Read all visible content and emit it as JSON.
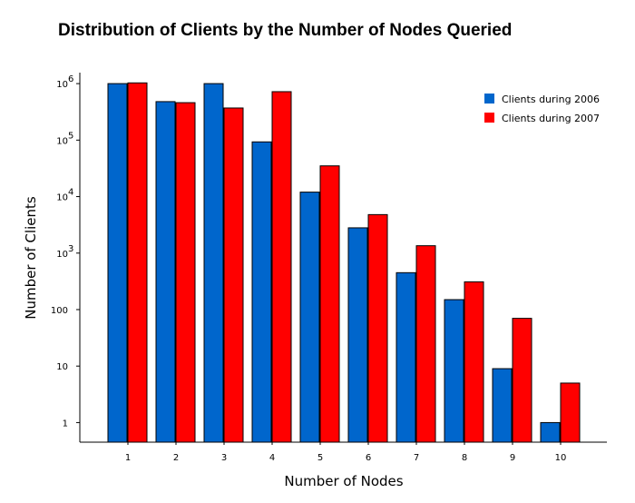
{
  "chart_data": {
    "type": "bar",
    "title": "Distribution of Clients by the Number of Nodes Queried",
    "xlabel": "Number of Nodes",
    "ylabel": "Number of Clients",
    "y_scale": "log",
    "ylim": [
      0.45,
      1300000
    ],
    "categories": [
      "1",
      "2",
      "3",
      "4",
      "5",
      "6",
      "7",
      "8",
      "9",
      "10"
    ],
    "y_ticks": [
      {
        "value": 1,
        "label": "1"
      },
      {
        "value": 10,
        "label": "10"
      },
      {
        "value": 100,
        "label": "100"
      },
      {
        "value": 1000,
        "label": "10",
        "exponent": "3"
      },
      {
        "value": 10000,
        "label": "10",
        "exponent": "4"
      },
      {
        "value": 100000,
        "label": "10",
        "exponent": "5"
      },
      {
        "value": 1000000,
        "label": "10",
        "exponent": "6"
      }
    ],
    "series": [
      {
        "name": "Clients during 2006",
        "color": "#0066cc",
        "values": [
          1000000,
          480000,
          1000000,
          93000,
          12000,
          2800,
          450,
          150,
          9,
          1
        ]
      },
      {
        "name": "Clients during 2007",
        "color": "#ff0000",
        "values": [
          1030000,
          460000,
          370000,
          720000,
          35000,
          4800,
          1350,
          310,
          70,
          5
        ]
      }
    ],
    "legend_position": "top-right",
    "grid": false
  }
}
